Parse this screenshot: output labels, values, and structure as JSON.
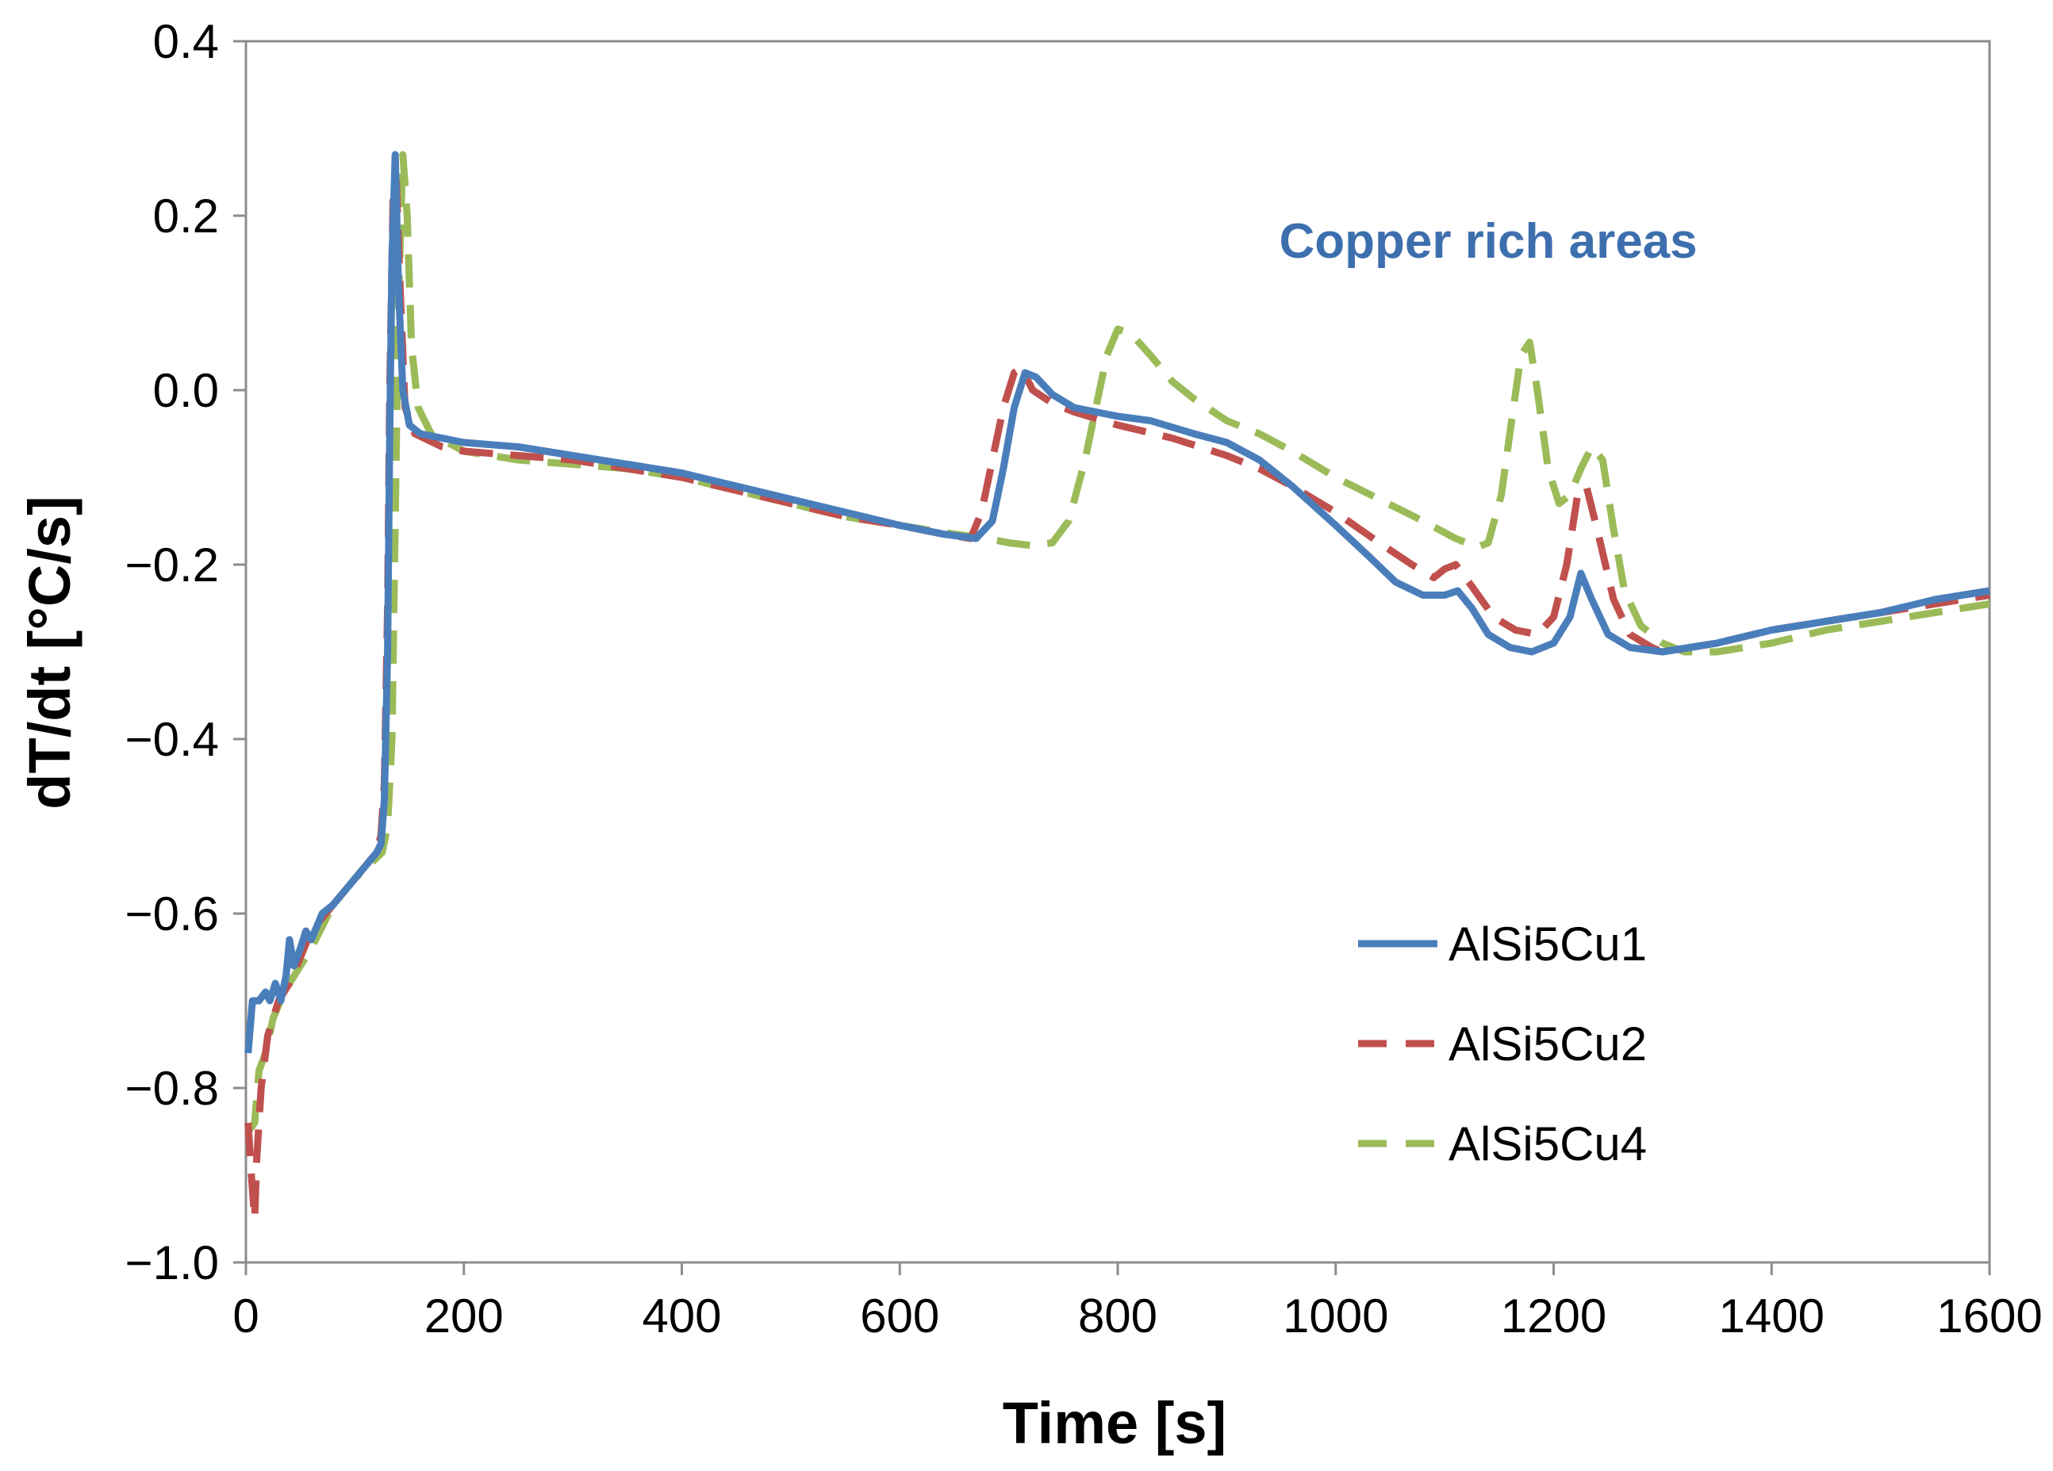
{
  "chart_data": {
    "type": "line",
    "title": "",
    "xlabel": "Time [s]",
    "ylabel": "dT/dt [°C/s]",
    "xlim": [
      0,
      1600
    ],
    "ylim": [
      -1.0,
      0.4
    ],
    "grid": false,
    "x_ticks": [
      0,
      200,
      400,
      600,
      800,
      1000,
      1200,
      1400,
      1600
    ],
    "x_tick_labels": [
      "0",
      "200",
      "400",
      "600",
      "800",
      "1000",
      "1200",
      "1400",
      "1600"
    ],
    "y_ticks": [
      0.4,
      0.2,
      0.0,
      -0.2,
      -0.4,
      -0.6,
      -0.8,
      -1.0
    ],
    "y_tick_labels": [
      "0.4",
      "0.2",
      "0.0",
      "−0.2",
      "−0.4",
      "−0.6",
      "−0.8",
      "−1.0"
    ],
    "annotations": [
      {
        "text": "Copper rich areas",
        "x": 1140,
        "y": 0.17,
        "color": "#3d6fae"
      }
    ],
    "legend_position": "right",
    "series": [
      {
        "name": "AlSi5Cu1",
        "color": "#4a7ebb",
        "dash": "solid",
        "points": [
          [
            2,
            -0.76
          ],
          [
            6,
            -0.7
          ],
          [
            12,
            -0.7
          ],
          [
            18,
            -0.69
          ],
          [
            22,
            -0.7
          ],
          [
            27,
            -0.68
          ],
          [
            32,
            -0.7
          ],
          [
            37,
            -0.67
          ],
          [
            40,
            -0.63
          ],
          [
            44,
            -0.66
          ],
          [
            50,
            -0.64
          ],
          [
            55,
            -0.62
          ],
          [
            60,
            -0.63
          ],
          [
            70,
            -0.6
          ],
          [
            80,
            -0.59
          ],
          [
            100,
            -0.56
          ],
          [
            120,
            -0.53
          ],
          [
            124,
            -0.52
          ],
          [
            127,
            -0.47
          ],
          [
            130,
            -0.3
          ],
          [
            132,
            -0.05
          ],
          [
            134,
            0.15
          ],
          [
            137,
            0.27
          ],
          [
            140,
            0.12
          ],
          [
            144,
            0.0
          ],
          [
            150,
            -0.04
          ],
          [
            160,
            -0.05
          ],
          [
            200,
            -0.06
          ],
          [
            250,
            -0.065
          ],
          [
            300,
            -0.075
          ],
          [
            350,
            -0.085
          ],
          [
            400,
            -0.095
          ],
          [
            450,
            -0.11
          ],
          [
            500,
            -0.125
          ],
          [
            550,
            -0.14
          ],
          [
            600,
            -0.155
          ],
          [
            640,
            -0.165
          ],
          [
            670,
            -0.17
          ],
          [
            685,
            -0.15
          ],
          [
            695,
            -0.09
          ],
          [
            705,
            -0.02
          ],
          [
            715,
            0.02
          ],
          [
            725,
            0.015
          ],
          [
            740,
            -0.005
          ],
          [
            760,
            -0.02
          ],
          [
            800,
            -0.03
          ],
          [
            830,
            -0.035
          ],
          [
            870,
            -0.05
          ],
          [
            900,
            -0.06
          ],
          [
            930,
            -0.08
          ],
          [
            960,
            -0.11
          ],
          [
            1000,
            -0.155
          ],
          [
            1030,
            -0.19
          ],
          [
            1055,
            -0.22
          ],
          [
            1080,
            -0.235
          ],
          [
            1100,
            -0.235
          ],
          [
            1112,
            -0.23
          ],
          [
            1125,
            -0.25
          ],
          [
            1140,
            -0.28
          ],
          [
            1160,
            -0.295
          ],
          [
            1180,
            -0.3
          ],
          [
            1200,
            -0.29
          ],
          [
            1215,
            -0.26
          ],
          [
            1225,
            -0.21
          ],
          [
            1235,
            -0.24
          ],
          [
            1250,
            -0.28
          ],
          [
            1270,
            -0.295
          ],
          [
            1300,
            -0.3
          ],
          [
            1350,
            -0.29
          ],
          [
            1400,
            -0.275
          ],
          [
            1450,
            -0.265
          ],
          [
            1500,
            -0.255
          ],
          [
            1550,
            -0.24
          ],
          [
            1600,
            -0.23
          ]
        ]
      },
      {
        "name": "AlSi5Cu2",
        "color": "#c0504d",
        "dash": "dashed",
        "points": [
          [
            2,
            -0.84
          ],
          [
            5,
            -0.9
          ],
          [
            8,
            -0.95
          ],
          [
            10,
            -0.88
          ],
          [
            14,
            -0.8
          ],
          [
            20,
            -0.74
          ],
          [
            30,
            -0.7
          ],
          [
            40,
            -0.68
          ],
          [
            50,
            -0.65
          ],
          [
            60,
            -0.62
          ],
          [
            80,
            -0.59
          ],
          [
            100,
            -0.56
          ],
          [
            120,
            -0.53
          ],
          [
            124,
            -0.51
          ],
          [
            127,
            -0.45
          ],
          [
            130,
            -0.25
          ],
          [
            132,
            0.0
          ],
          [
            135,
            0.22
          ],
          [
            138,
            0.24
          ],
          [
            142,
            0.1
          ],
          [
            146,
            -0.02
          ],
          [
            155,
            -0.05
          ],
          [
            180,
            -0.065
          ],
          [
            200,
            -0.07
          ],
          [
            250,
            -0.075
          ],
          [
            300,
            -0.08
          ],
          [
            350,
            -0.09
          ],
          [
            400,
            -0.1
          ],
          [
            450,
            -0.115
          ],
          [
            500,
            -0.13
          ],
          [
            550,
            -0.145
          ],
          [
            600,
            -0.155
          ],
          [
            640,
            -0.165
          ],
          [
            665,
            -0.17
          ],
          [
            675,
            -0.14
          ],
          [
            685,
            -0.08
          ],
          [
            695,
            -0.02
          ],
          [
            705,
            0.02
          ],
          [
            712,
            0.025
          ],
          [
            722,
            0.0
          ],
          [
            740,
            -0.015
          ],
          [
            760,
            -0.025
          ],
          [
            800,
            -0.04
          ],
          [
            850,
            -0.055
          ],
          [
            900,
            -0.075
          ],
          [
            930,
            -0.09
          ],
          [
            960,
            -0.11
          ],
          [
            1000,
            -0.14
          ],
          [
            1040,
            -0.175
          ],
          [
            1070,
            -0.2
          ],
          [
            1090,
            -0.215
          ],
          [
            1100,
            -0.205
          ],
          [
            1110,
            -0.2
          ],
          [
            1125,
            -0.225
          ],
          [
            1145,
            -0.26
          ],
          [
            1165,
            -0.275
          ],
          [
            1185,
            -0.28
          ],
          [
            1200,
            -0.26
          ],
          [
            1212,
            -0.2
          ],
          [
            1222,
            -0.12
          ],
          [
            1230,
            -0.11
          ],
          [
            1240,
            -0.16
          ],
          [
            1255,
            -0.24
          ],
          [
            1270,
            -0.28
          ],
          [
            1290,
            -0.295
          ],
          [
            1300,
            -0.3
          ],
          [
            1350,
            -0.29
          ],
          [
            1400,
            -0.275
          ],
          [
            1450,
            -0.265
          ],
          [
            1500,
            -0.255
          ],
          [
            1550,
            -0.245
          ],
          [
            1600,
            -0.235
          ]
        ]
      },
      {
        "name": "AlSi5Cu4",
        "color": "#9bbb59",
        "dash": "dashed",
        "points": [
          [
            2,
            -0.85
          ],
          [
            8,
            -0.84
          ],
          [
            12,
            -0.78
          ],
          [
            18,
            -0.76
          ],
          [
            25,
            -0.72
          ],
          [
            35,
            -0.69
          ],
          [
            45,
            -0.67
          ],
          [
            60,
            -0.64
          ],
          [
            80,
            -0.59
          ],
          [
            100,
            -0.56
          ],
          [
            125,
            -0.53
          ],
          [
            130,
            -0.5
          ],
          [
            134,
            -0.4
          ],
          [
            137,
            -0.15
          ],
          [
            140,
            0.1
          ],
          [
            144,
            0.27
          ],
          [
            148,
            0.2
          ],
          [
            152,
            0.05
          ],
          [
            158,
            -0.02
          ],
          [
            170,
            -0.05
          ],
          [
            200,
            -0.07
          ],
          [
            250,
            -0.08
          ],
          [
            300,
            -0.085
          ],
          [
            350,
            -0.09
          ],
          [
            400,
            -0.1
          ],
          [
            450,
            -0.115
          ],
          [
            500,
            -0.13
          ],
          [
            550,
            -0.145
          ],
          [
            600,
            -0.155
          ],
          [
            650,
            -0.165
          ],
          [
            680,
            -0.17
          ],
          [
            700,
            -0.175
          ],
          [
            720,
            -0.178
          ],
          [
            740,
            -0.175
          ],
          [
            755,
            -0.15
          ],
          [
            770,
            -0.08
          ],
          [
            780,
            -0.02
          ],
          [
            790,
            0.04
          ],
          [
            800,
            0.07
          ],
          [
            812,
            0.065
          ],
          [
            830,
            0.04
          ],
          [
            850,
            0.01
          ],
          [
            870,
            -0.01
          ],
          [
            900,
            -0.035
          ],
          [
            930,
            -0.05
          ],
          [
            960,
            -0.07
          ],
          [
            1000,
            -0.1
          ],
          [
            1040,
            -0.125
          ],
          [
            1080,
            -0.15
          ],
          [
            1110,
            -0.17
          ],
          [
            1130,
            -0.18
          ],
          [
            1140,
            -0.175
          ],
          [
            1152,
            -0.12
          ],
          [
            1162,
            -0.03
          ],
          [
            1170,
            0.04
          ],
          [
            1178,
            0.055
          ],
          [
            1185,
            0.0
          ],
          [
            1195,
            -0.09
          ],
          [
            1205,
            -0.13
          ],
          [
            1215,
            -0.12
          ],
          [
            1225,
            -0.09
          ],
          [
            1235,
            -0.065
          ],
          [
            1245,
            -0.08
          ],
          [
            1255,
            -0.16
          ],
          [
            1265,
            -0.23
          ],
          [
            1280,
            -0.27
          ],
          [
            1300,
            -0.29
          ],
          [
            1320,
            -0.3
          ],
          [
            1350,
            -0.3
          ],
          [
            1400,
            -0.29
          ],
          [
            1450,
            -0.275
          ],
          [
            1500,
            -0.265
          ],
          [
            1550,
            -0.255
          ],
          [
            1600,
            -0.245
          ]
        ]
      }
    ]
  }
}
